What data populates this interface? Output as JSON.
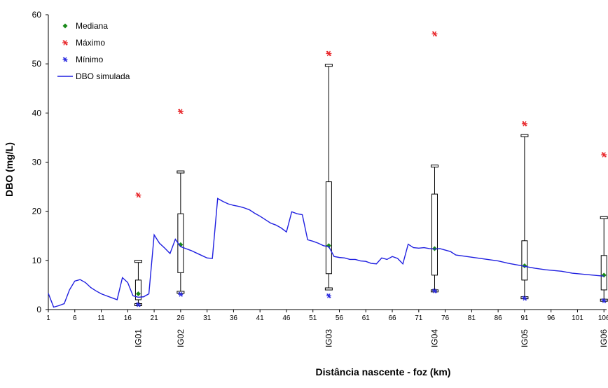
{
  "chart_data": {
    "type": "boxplot",
    "xlabel": "Distância nascente - foz (km)",
    "ylabel": "DBO (mg/L)",
    "xlim": [
      1,
      106.5
    ],
    "xticks": [
      1,
      6,
      11,
      16,
      21,
      26,
      31,
      36,
      41,
      46,
      51,
      56,
      61,
      66,
      71,
      76,
      81,
      86,
      91,
      96,
      101,
      106
    ],
    "ylim": [
      0,
      60
    ],
    "yticks": [
      0,
      10,
      20,
      30,
      40,
      50,
      60
    ],
    "legend": "upper left",
    "stations": {
      "names": [
        "IG01",
        "IG02",
        "IG03",
        "IG04",
        "IG05",
        "IG06"
      ],
      "x": [
        18,
        26,
        54,
        74,
        91,
        106
      ]
    },
    "boxes": {
      "color": "#000000",
      "whisker_low": [
        1,
        3.5,
        4.2,
        3.8,
        2.4,
        1.9
      ],
      "q1": [
        2,
        7.5,
        7.3,
        7,
        6,
        4
      ],
      "q3": [
        6,
        19.5,
        26,
        23.5,
        14,
        11
      ],
      "whisker_high": [
        9.8,
        28,
        49.7,
        29.2,
        35.4,
        18.7
      ]
    },
    "series": [
      {
        "name": "Mediana",
        "color": "#1a8a1a",
        "marker": "diamond",
        "values": [
          3.2,
          13.2,
          13,
          12.4,
          8.9,
          7
        ]
      },
      {
        "name": "Máximo",
        "color": "#e8262a",
        "marker": "asterisk",
        "values": [
          23.3,
          40.3,
          52.1,
          56.1,
          37.8,
          31.5
        ]
      },
      {
        "name": "Mínimo",
        "color": "#2a2ae0",
        "marker": "asterisk",
        "values": [
          1,
          3.1,
          2.8,
          3.8,
          2.3,
          1.8
        ]
      },
      {
        "name": "DBO simulada",
        "color": "#1f1fe0",
        "marker": "line",
        "x": [
          1,
          2,
          3,
          4,
          5,
          6,
          7,
          8,
          9,
          10,
          11,
          12,
          13,
          14,
          15,
          16,
          17,
          18,
          19,
          20,
          21,
          22,
          23,
          24,
          25,
          26,
          27,
          28,
          29,
          30,
          31,
          32,
          33,
          34,
          35,
          36,
          37,
          38,
          39,
          40,
          41,
          42,
          43,
          44,
          45,
          46,
          47,
          48,
          49,
          50,
          51,
          52,
          53,
          54,
          55,
          56,
          57,
          58,
          59,
          60,
          61,
          62,
          63,
          64,
          65,
          66,
          67,
          68,
          69,
          70,
          71,
          72,
          73,
          74,
          75,
          76,
          77,
          78,
          80,
          82,
          84,
          86,
          88,
          90,
          91,
          93,
          95,
          98,
          100,
          103,
          106
        ],
        "values": [
          3.3,
          0.5,
          0.8,
          1.2,
          4,
          5.8,
          6.1,
          5.5,
          4.5,
          3.8,
          3.2,
          2.8,
          2.4,
          2,
          6.5,
          5.5,
          2.8,
          2.5,
          2.6,
          3.2,
          15.2,
          13.5,
          12.5,
          11.4,
          14.3,
          12.8,
          12.4,
          12,
          11.5,
          11,
          10.5,
          10.4,
          22.6,
          22,
          21.5,
          21.2,
          21,
          20.7,
          20.3,
          19.6,
          19,
          18.3,
          17.6,
          17.2,
          16.6,
          15.8,
          19.9,
          19.5,
          19.3,
          14.2,
          13.9,
          13.5,
          13,
          12.8,
          10.8,
          10.6,
          10.5,
          10.2,
          10.2,
          9.9,
          9.8,
          9.4,
          9.3,
          10.5,
          10.2,
          10.8,
          10.4,
          9.3,
          13.3,
          12.6,
          12.5,
          12.6,
          12.4,
          12.3,
          12.4,
          12.1,
          11.8,
          11.1,
          10.8,
          10.5,
          10.2,
          9.9,
          9.4,
          9,
          8.8,
          8.4,
          8.1,
          7.8,
          7.4,
          7.1,
          6.8
        ]
      }
    ]
  }
}
